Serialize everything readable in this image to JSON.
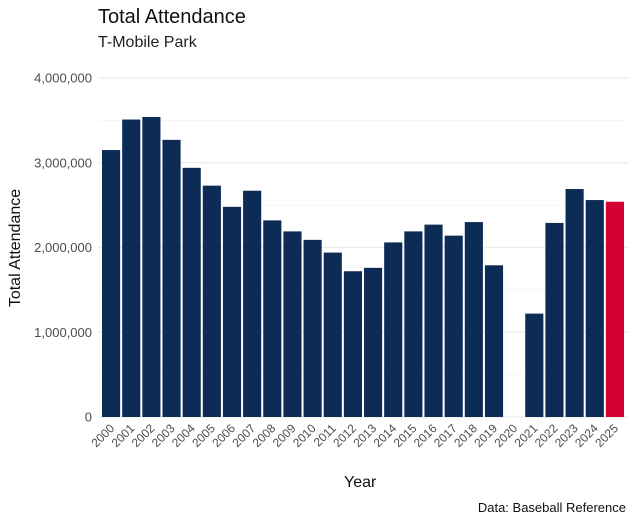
{
  "chart_data": {
    "type": "bar",
    "title": "Total Attendance",
    "subtitle": "T-Mobile Park",
    "xlabel": "Year",
    "ylabel": "Total Attendance",
    "caption": "Data: Baseball Reference",
    "ylim": [
      0,
      4000000
    ],
    "yticks": [
      0,
      1000000,
      2000000,
      3000000,
      4000000
    ],
    "ytick_labels": [
      "0",
      "1,000,000",
      "2,000,000",
      "3,000,000",
      "4,000,000"
    ],
    "grid": true,
    "categories": [
      "2000",
      "2001",
      "2002",
      "2003",
      "2004",
      "2005",
      "2006",
      "2007",
      "2008",
      "2009",
      "2010",
      "2011",
      "2012",
      "2013",
      "2014",
      "2015",
      "2016",
      "2017",
      "2018",
      "2019",
      "2020",
      "2021",
      "2022",
      "2023",
      "2024",
      "2025"
    ],
    "values": [
      3150000,
      3510000,
      3540000,
      3270000,
      2940000,
      2730000,
      2480000,
      2670000,
      2320000,
      2190000,
      2090000,
      1940000,
      1720000,
      1760000,
      2060000,
      2190000,
      2270000,
      2140000,
      2300000,
      1790000,
      0,
      1220000,
      2290000,
      2690000,
      2560000,
      2540000
    ],
    "colors": {
      "default": "#0C2C56",
      "highlight": "#D50032",
      "highlight_category": "2025",
      "grid": "#EBEBEB"
    }
  }
}
